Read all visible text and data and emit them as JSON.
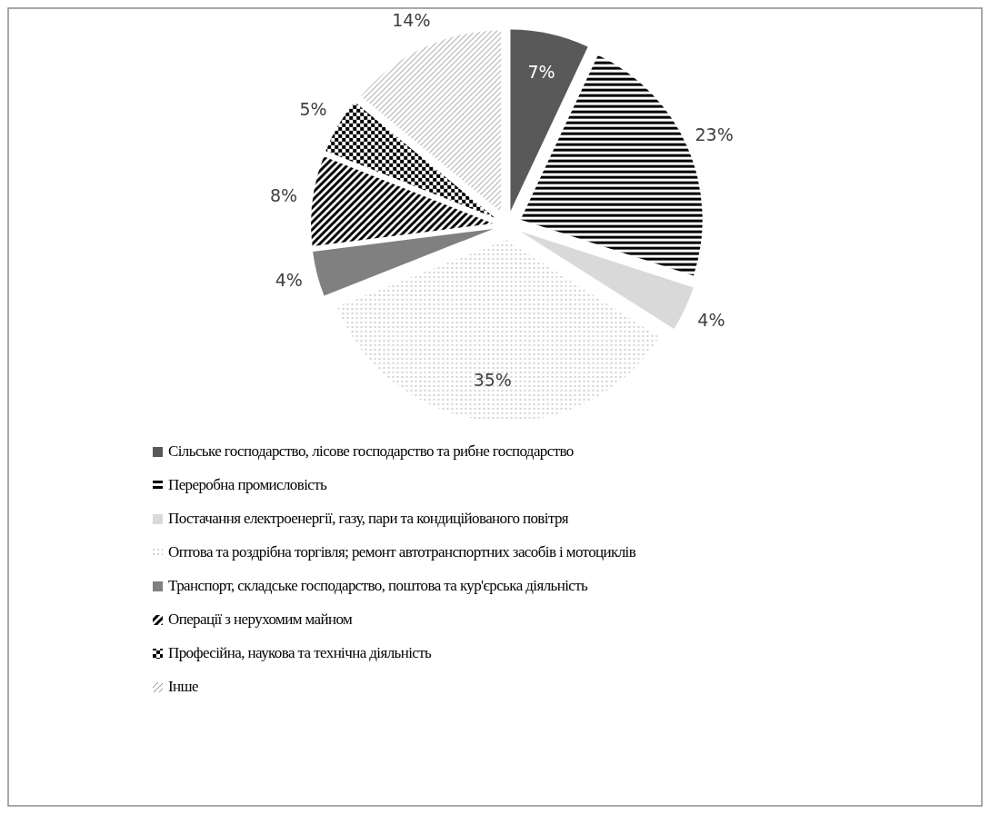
{
  "chart_data": {
    "type": "pie",
    "categories": [
      "Сільське господарство, лісове господарство та рибне господарство",
      "Переробна промисловість",
      "Постачання електроенергії, газу, пари та кондиційованого повітря",
      "Оптова та роздрібна торгівля; ремонт автотранспортних засобів і мотоциклів",
      "Транспорт, складське господарство, поштова та кур'єрська діяльність",
      "Операції з нерухомим майном",
      "Професійна, наукова та технічна діяльність",
      "Інше"
    ],
    "values": [
      7,
      23,
      4,
      35,
      4,
      8,
      5,
      14
    ],
    "colors": [
      "#595959",
      "#000000",
      "#d9d9d9",
      "#7f7f7f",
      "#808080",
      "#000000",
      "#000000",
      "#8c8c8c"
    ],
    "value_labels": [
      "7%",
      "23%",
      "4%",
      "35%",
      "4%",
      "8%",
      "5%",
      "14%"
    ],
    "legend": "bottom"
  }
}
